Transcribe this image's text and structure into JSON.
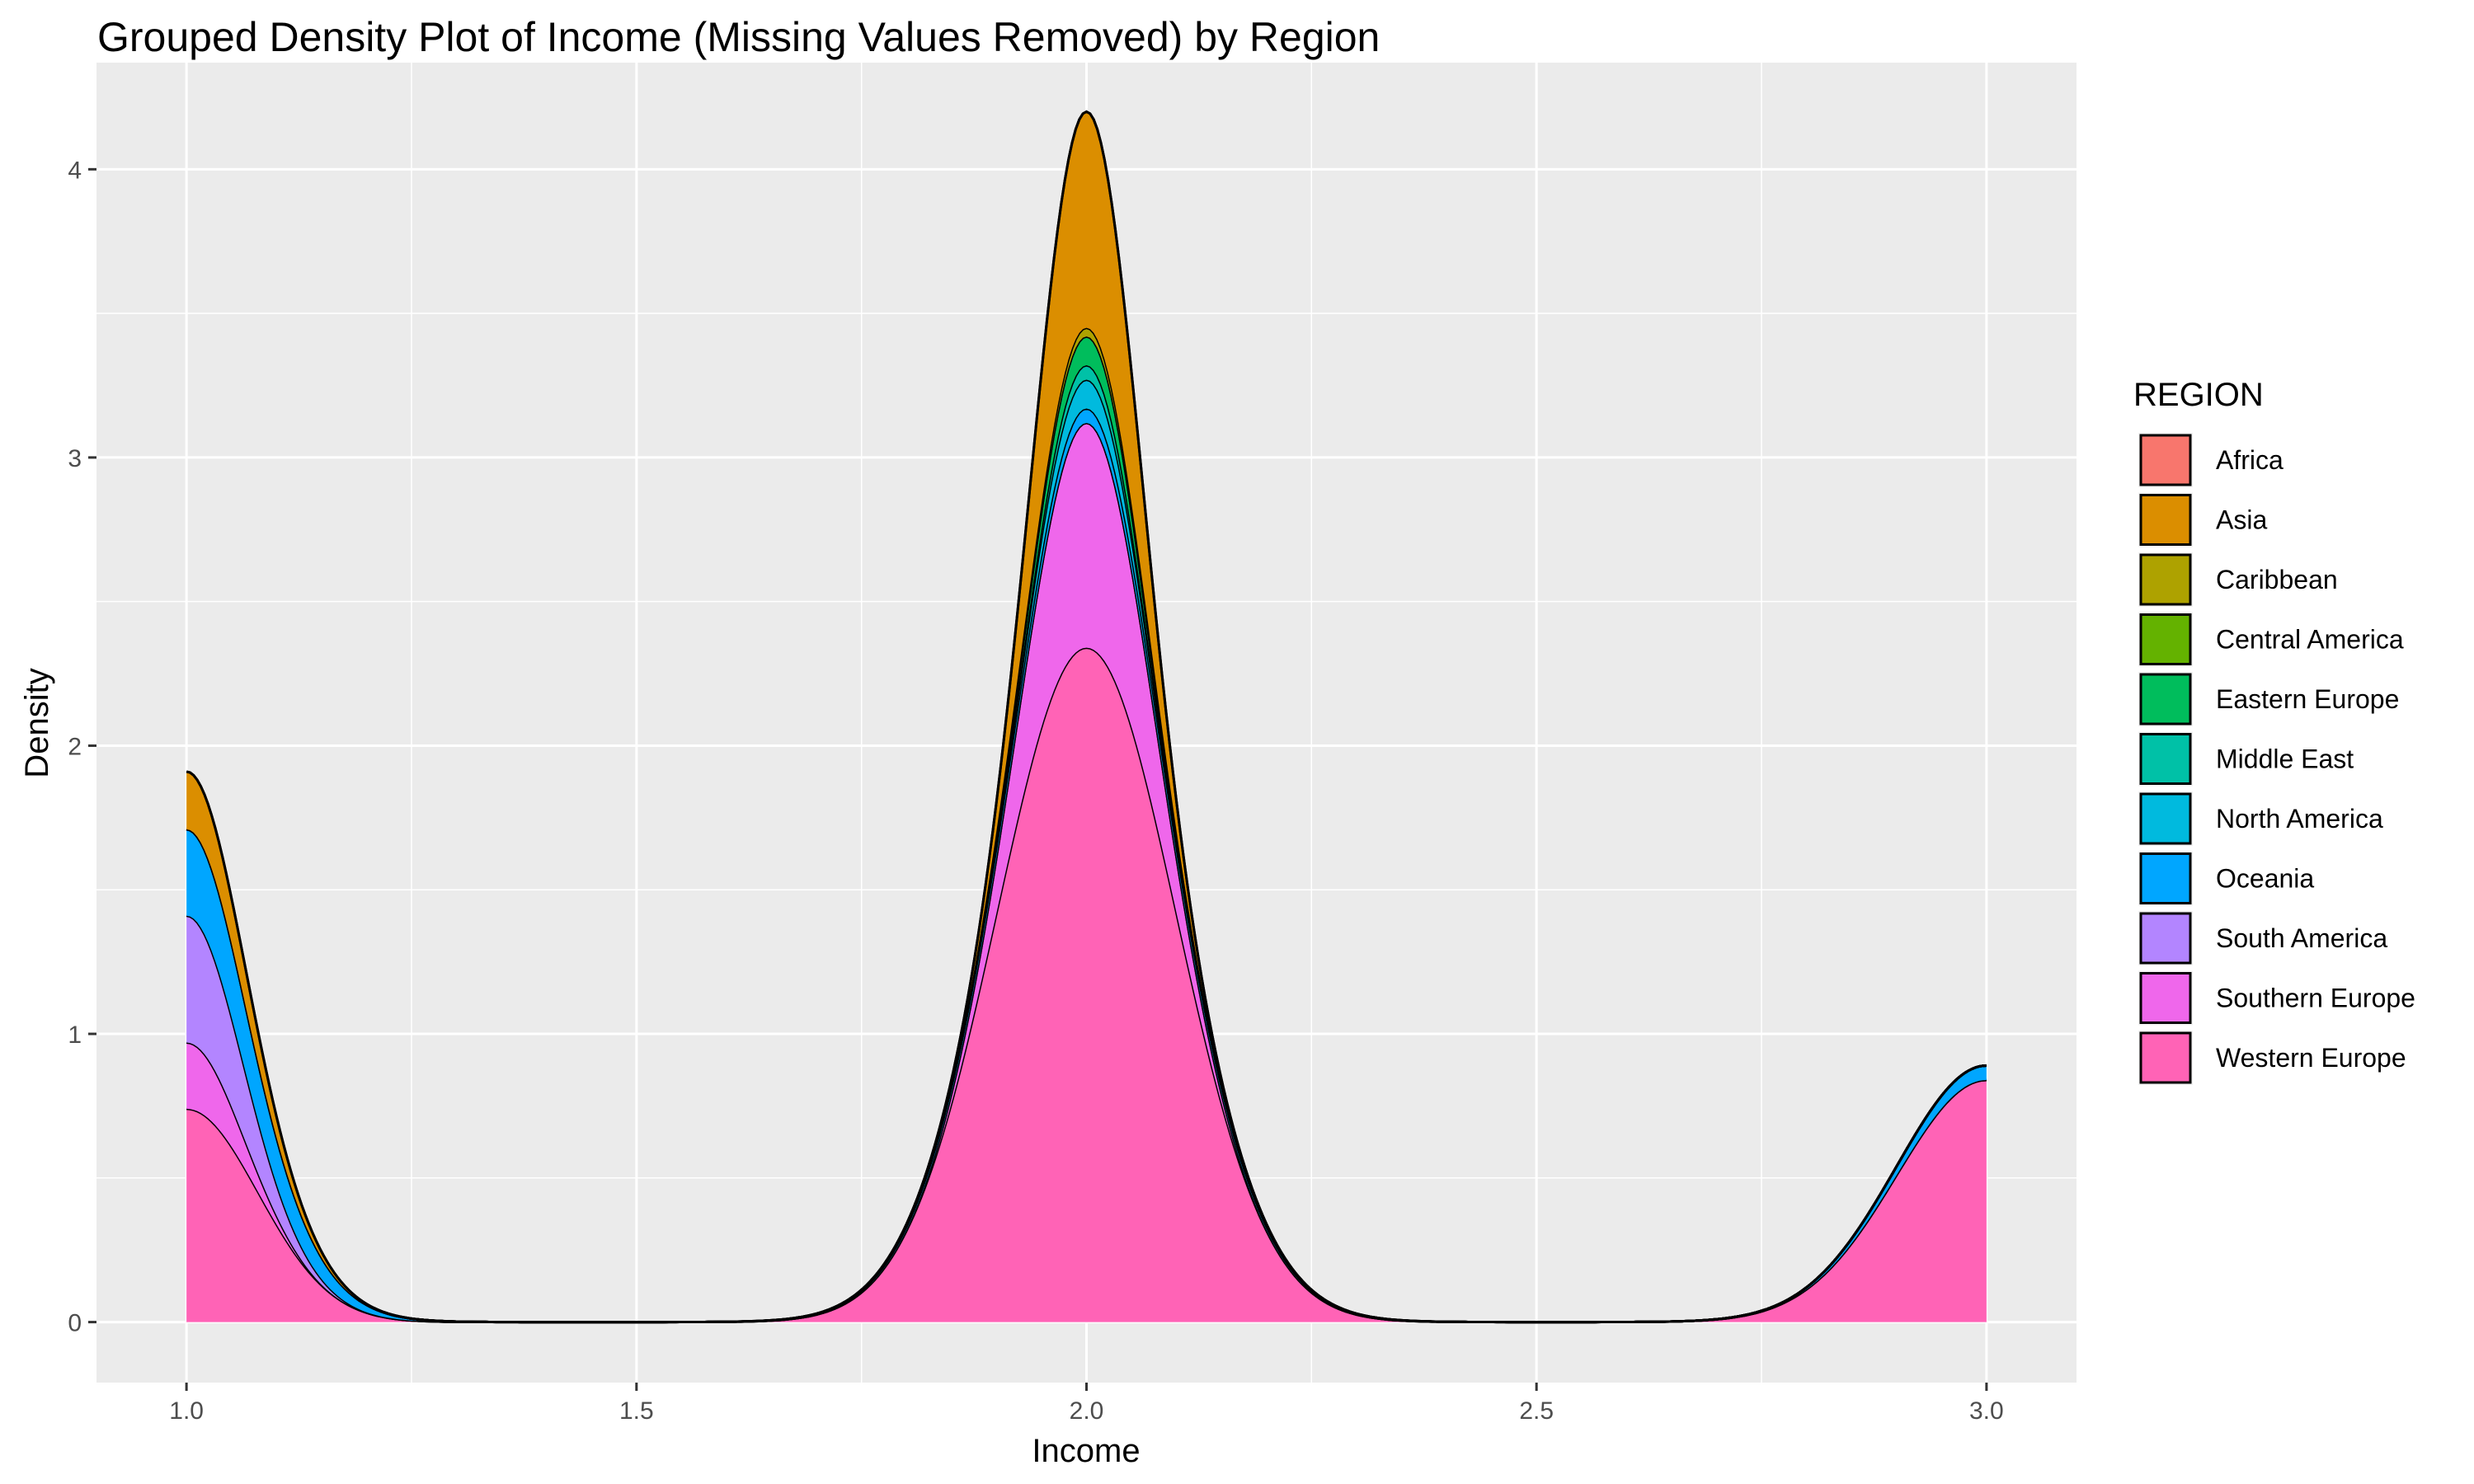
{
  "chart_data": {
    "type": "area",
    "title": "Grouped Density Plot of Income (Missing Values Removed) by Region",
    "xlabel": "Income",
    "ylabel": "Density",
    "xlim": [
      0.9,
      3.1
    ],
    "ylim": [
      -0.21,
      4.37
    ],
    "x_ticks": [
      1.0,
      1.5,
      2.0,
      2.5,
      3.0
    ],
    "x_tick_labels": [
      "1.0",
      "1.5",
      "2.0",
      "2.5",
      "3.0"
    ],
    "y_ticks": [
      0,
      1,
      2,
      3,
      4
    ],
    "y_tick_labels": [
      "0",
      "1",
      "2",
      "3",
      "4"
    ],
    "grid": true,
    "stacked": true,
    "legend": {
      "title": "REGION",
      "position": "right"
    },
    "peak_model": "gaussian",
    "series": [
      {
        "name": "Africa",
        "color": "#F8766D",
        "peaks": []
      },
      {
        "name": "Asia",
        "color": "#DB8E00",
        "peaks": [
          {
            "x": 1.0,
            "height": 0.2,
            "sd": 0.07
          },
          {
            "x": 2.0,
            "height": 0.75,
            "sd": 0.05
          }
        ]
      },
      {
        "name": "Caribbean",
        "color": "#AEA200",
        "peaks": [
          {
            "x": 2.0,
            "height": 0.03,
            "sd": 0.12
          }
        ]
      },
      {
        "name": "Central America",
        "color": "#64B200",
        "peaks": []
      },
      {
        "name": "Eastern Europe",
        "color": "#00BD5C",
        "peaks": [
          {
            "x": 2.0,
            "height": 0.1,
            "sd": 0.05
          }
        ]
      },
      {
        "name": "Middle East",
        "color": "#00C1A7",
        "peaks": [
          {
            "x": 2.0,
            "height": 0.05,
            "sd": 0.05
          }
        ]
      },
      {
        "name": "North America",
        "color": "#00BADE",
        "peaks": [
          {
            "x": 2.0,
            "height": 0.1,
            "sd": 0.05
          }
        ]
      },
      {
        "name": "Oceania",
        "color": "#00A6FF",
        "peaks": [
          {
            "x": 1.0,
            "height": 0.3,
            "sd": 0.09
          },
          {
            "x": 2.0,
            "height": 0.05,
            "sd": 0.12
          },
          {
            "x": 3.0,
            "height": 0.05,
            "sd": 0.1
          }
        ]
      },
      {
        "name": "South America",
        "color": "#B385FF",
        "peaks": [
          {
            "x": 1.0,
            "height": 0.44,
            "sd": 0.06
          }
        ]
      },
      {
        "name": "Southern Europe",
        "color": "#EF67EB",
        "peaks": [
          {
            "x": 1.0,
            "height": 0.23,
            "sd": 0.05
          },
          {
            "x": 2.0,
            "height": 0.78,
            "sd": 0.06
          }
        ]
      },
      {
        "name": "Western Europe",
        "color": "#FF63B6",
        "peaks": [
          {
            "x": 1.0,
            "height": 0.74,
            "sd": 0.08
          },
          {
            "x": 2.0,
            "height": 2.34,
            "sd": 0.1
          },
          {
            "x": 3.0,
            "height": 0.84,
            "sd": 0.1
          }
        ]
      }
    ]
  }
}
